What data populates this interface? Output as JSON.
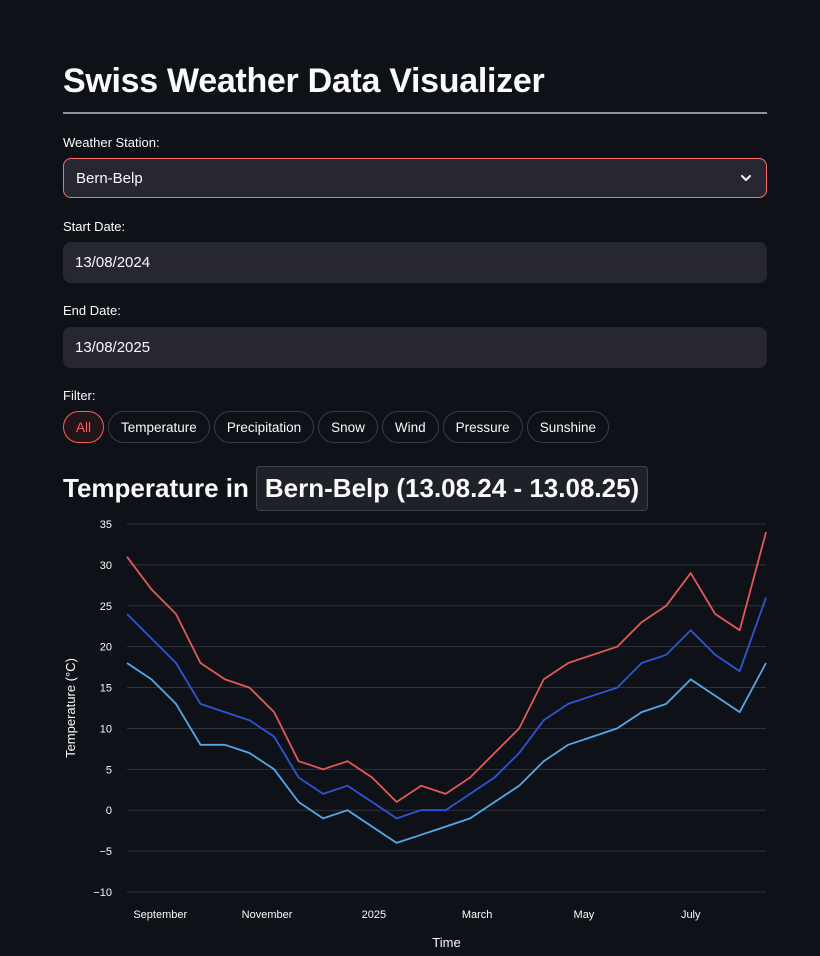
{
  "app": {
    "title": "Swiss Weather Data Visualizer"
  },
  "station": {
    "label": "Weather Station:",
    "value": "Bern-Belp"
  },
  "start_date": {
    "label": "Start Date:",
    "value": "13/08/2024"
  },
  "end_date": {
    "label": "End Date:",
    "value": "13/08/2025"
  },
  "filter": {
    "label": "Filter:",
    "options": [
      "All",
      "Temperature",
      "Precipitation",
      "Snow",
      "Wind",
      "Pressure",
      "Sunshine"
    ],
    "selected": "All"
  },
  "chart_heading": {
    "prefix": "Temperature in",
    "code": "Bern-Belp (13.08.24 - 13.08.25)"
  },
  "colors": {
    "max": "#e05a5a",
    "mean": "#2f55d4",
    "min": "#55a8e8",
    "accent": "#ff5b5b"
  },
  "chart_data": {
    "type": "line",
    "xlabel": "Time",
    "ylabel": "Temperature (°C)",
    "ylim": [
      -10,
      35
    ],
    "yticks": [
      -10,
      -5,
      0,
      5,
      10,
      15,
      20,
      25,
      30,
      35
    ],
    "xlim": [
      "2024-08-13",
      "2025-08-13"
    ],
    "xticks": [
      {
        "label": "September",
        "date": "2024-09-01"
      },
      {
        "label": "November",
        "date": "2024-11-01"
      },
      {
        "label": "2025",
        "date": "2025-01-01"
      },
      {
        "label": "March",
        "date": "2025-03-01"
      },
      {
        "label": "May",
        "date": "2025-05-01"
      },
      {
        "label": "July",
        "date": "2025-07-01"
      }
    ],
    "grid": true,
    "series": [
      {
        "key": "max",
        "x": [
          "2024-08-13",
          "2024-08-27",
          "2024-09-10",
          "2024-09-24",
          "2024-10-08",
          "2024-10-22",
          "2024-11-05",
          "2024-11-19",
          "2024-12-03",
          "2024-12-17",
          "2024-12-31",
          "2025-01-14",
          "2025-01-28",
          "2025-02-11",
          "2025-02-25",
          "2025-03-11",
          "2025-03-25",
          "2025-04-08",
          "2025-04-22",
          "2025-05-06",
          "2025-05-20",
          "2025-06-03",
          "2025-06-17",
          "2025-07-01",
          "2025-07-15",
          "2025-07-29",
          "2025-08-13"
        ],
        "y": [
          31,
          27,
          24,
          18,
          16,
          15,
          12,
          6,
          5,
          6,
          4,
          1,
          3,
          2,
          4,
          7,
          10,
          16,
          18,
          19,
          20,
          23,
          25,
          29,
          24,
          22,
          34
        ]
      },
      {
        "key": "mean",
        "x": [
          "2024-08-13",
          "2024-08-27",
          "2024-09-10",
          "2024-09-24",
          "2024-10-08",
          "2024-10-22",
          "2024-11-05",
          "2024-11-19",
          "2024-12-03",
          "2024-12-17",
          "2024-12-31",
          "2025-01-14",
          "2025-01-28",
          "2025-02-11",
          "2025-02-25",
          "2025-03-11",
          "2025-03-25",
          "2025-04-08",
          "2025-04-22",
          "2025-05-06",
          "2025-05-20",
          "2025-06-03",
          "2025-06-17",
          "2025-07-01",
          "2025-07-15",
          "2025-07-29",
          "2025-08-13"
        ],
        "y": [
          24,
          21,
          18,
          13,
          12,
          11,
          9,
          4,
          2,
          3,
          1,
          -1,
          0,
          0,
          2,
          4,
          7,
          11,
          13,
          14,
          15,
          18,
          19,
          22,
          19,
          17,
          26
        ]
      },
      {
        "key": "min",
        "x": [
          "2024-08-13",
          "2024-08-27",
          "2024-09-10",
          "2024-09-24",
          "2024-10-08",
          "2024-10-22",
          "2024-11-05",
          "2024-11-19",
          "2024-12-03",
          "2024-12-17",
          "2024-12-31",
          "2025-01-14",
          "2025-01-28",
          "2025-02-11",
          "2025-02-25",
          "2025-03-11",
          "2025-03-25",
          "2025-04-08",
          "2025-04-22",
          "2025-05-06",
          "2025-05-20",
          "2025-06-03",
          "2025-06-17",
          "2025-07-01",
          "2025-07-15",
          "2025-07-29",
          "2025-08-13"
        ],
        "y": [
          18,
          16,
          13,
          8,
          8,
          7,
          5,
          1,
          -1,
          0,
          -2,
          -4,
          -3,
          -2,
          -1,
          1,
          3,
          6,
          8,
          9,
          10,
          12,
          13,
          16,
          14,
          12,
          18
        ]
      }
    ]
  }
}
